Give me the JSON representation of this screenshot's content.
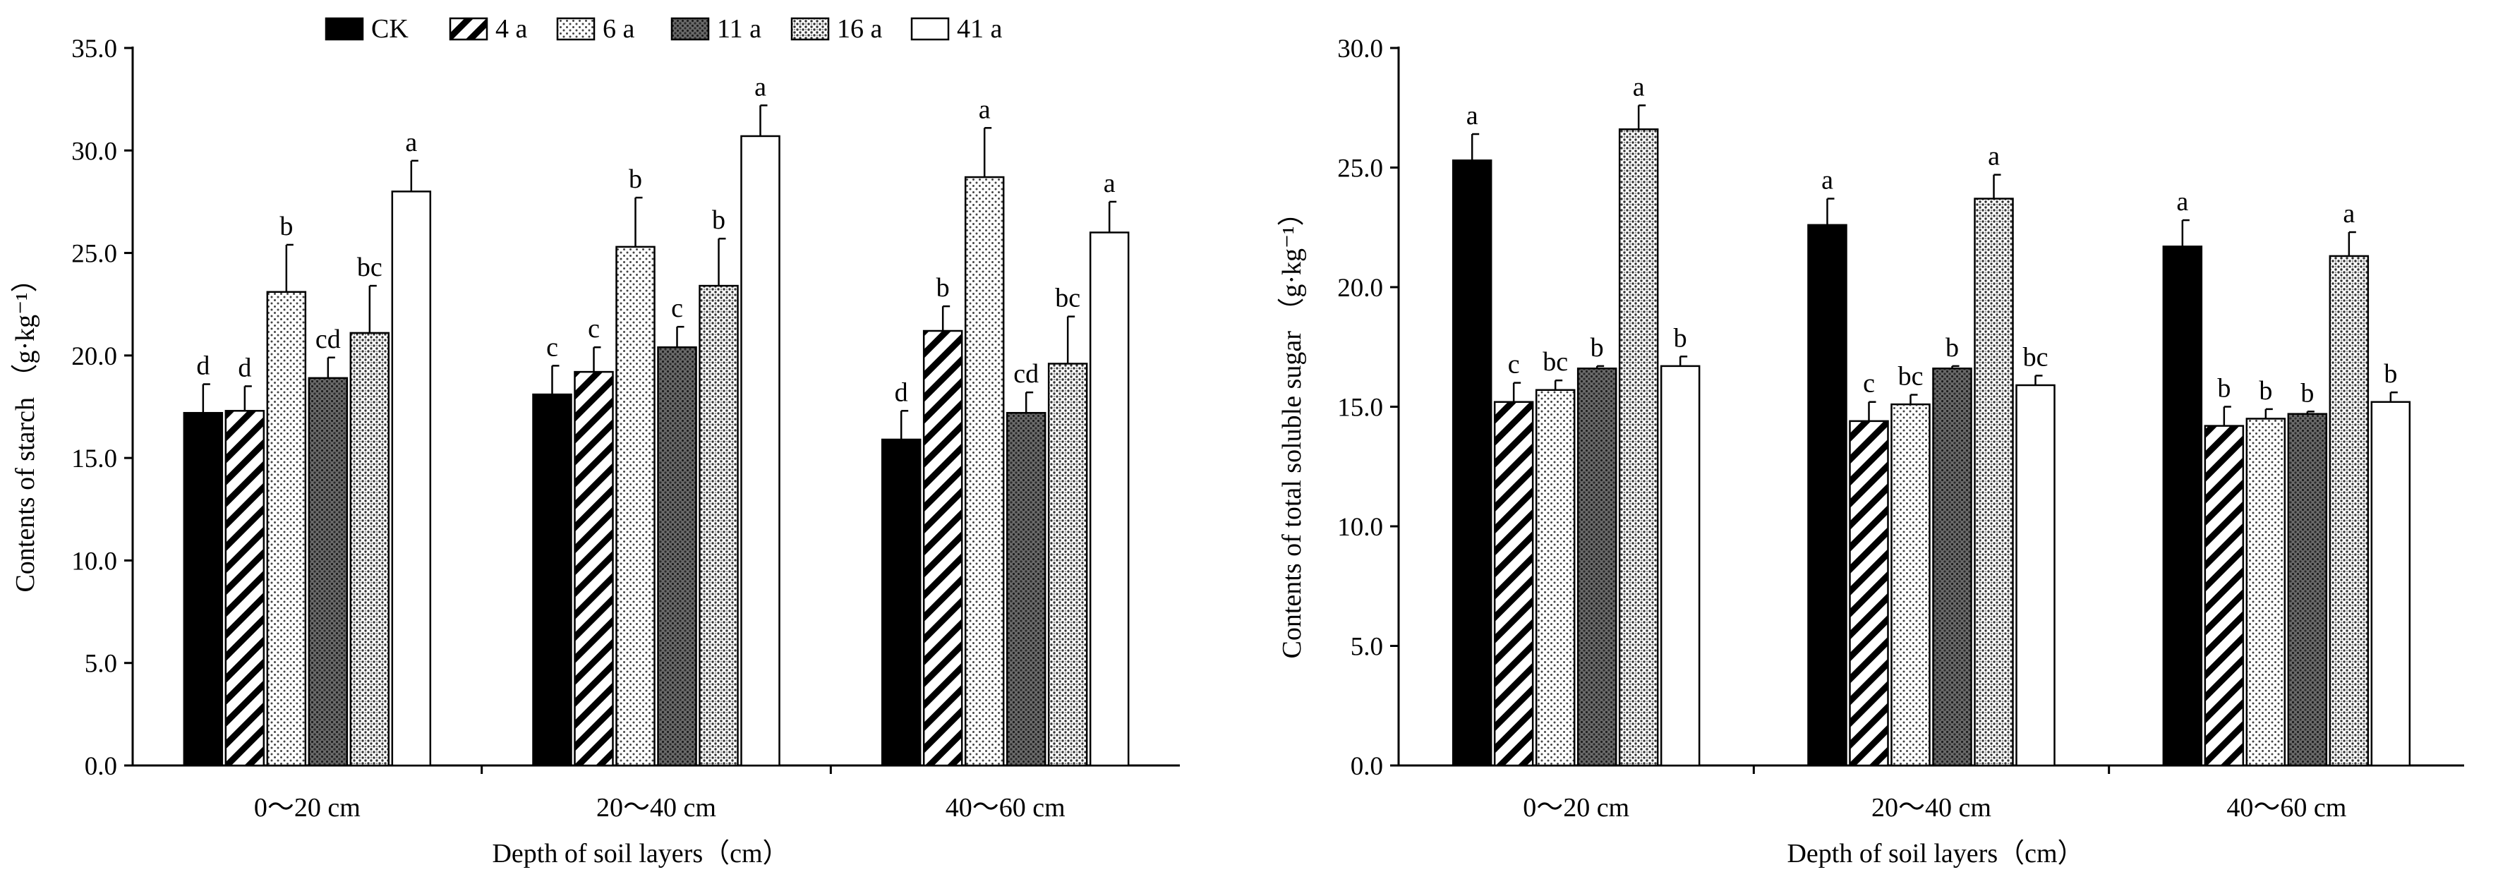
{
  "legend": {
    "items": [
      {
        "label": "CK",
        "pattern": "solid-black"
      },
      {
        "label": "4 a",
        "pattern": "diagonal-hatch"
      },
      {
        "label": "6 a",
        "pattern": "light-dots"
      },
      {
        "label": "11 a",
        "pattern": "dark-crosshatch"
      },
      {
        "label": "16 a",
        "pattern": "dense-dots"
      },
      {
        "label": "41 a",
        "pattern": "white"
      }
    ]
  },
  "chart_data": [
    {
      "type": "bar",
      "ylabel": "Contents of starch （g·kg⁻¹）",
      "xlabel": "Depth of soil layers（cm）",
      "ylim": [
        0,
        35
      ],
      "yticks": [
        "0.0",
        "5.0",
        "10.0",
        "15.0",
        "20.0",
        "25.0",
        "30.0",
        "35.0"
      ],
      "categories": [
        "0～20 cm",
        "20～40 cm",
        "40～60 cm"
      ],
      "series": [
        {
          "name": "CK",
          "values": [
            17.2,
            18.1,
            15.9
          ],
          "errors": [
            1.4,
            1.4,
            1.4
          ],
          "letters": [
            "d",
            "c",
            "d"
          ]
        },
        {
          "name": "4 a",
          "values": [
            17.3,
            19.2,
            21.2
          ],
          "errors": [
            1.2,
            1.2,
            1.2
          ],
          "letters": [
            "d",
            "c",
            "b"
          ]
        },
        {
          "name": "6 a",
          "values": [
            23.1,
            25.3,
            28.7
          ],
          "errors": [
            2.3,
            2.4,
            2.4
          ],
          "letters": [
            "b",
            "b",
            "a"
          ]
        },
        {
          "name": "11 a",
          "values": [
            18.9,
            20.4,
            17.2
          ],
          "errors": [
            1.0,
            1.0,
            1.0
          ],
          "letters": [
            "cd",
            "c",
            "cd"
          ]
        },
        {
          "name": "16 a",
          "values": [
            21.1,
            23.4,
            19.6
          ],
          "errors": [
            2.3,
            2.3,
            2.3
          ],
          "letters": [
            "bc",
            "b",
            "bc"
          ]
        },
        {
          "name": "41 a",
          "values": [
            28.0,
            30.7,
            26.0
          ],
          "errors": [
            1.5,
            1.5,
            1.5
          ],
          "letters": [
            "a",
            "a",
            "a"
          ]
        }
      ]
    },
    {
      "type": "bar",
      "ylabel": "Contents of total soluble sugar （g·kg⁻¹）",
      "xlabel": "Depth of soil layers（cm）",
      "ylim": [
        0,
        30
      ],
      "yticks": [
        "0.0",
        "5.0",
        "10.0",
        "15.0",
        "20.0",
        "25.0",
        "30.0"
      ],
      "categories": [
        "0～20 cm",
        "20～40 cm",
        "40～60 cm"
      ],
      "series": [
        {
          "name": "CK",
          "values": [
            25.3,
            22.6,
            21.7
          ],
          "errors": [
            1.1,
            1.1,
            1.1
          ],
          "letters": [
            "a",
            "a",
            "a"
          ]
        },
        {
          "name": "4 a",
          "values": [
            15.2,
            14.4,
            14.2
          ],
          "errors": [
            0.8,
            0.8,
            0.8
          ],
          "letters": [
            "c",
            "c",
            "b"
          ]
        },
        {
          "name": "6 a",
          "values": [
            15.7,
            15.1,
            14.5
          ],
          "errors": [
            0.4,
            0.4,
            0.4
          ],
          "letters": [
            "bc",
            "bc",
            "b"
          ]
        },
        {
          "name": "11 a",
          "values": [
            16.6,
            16.6,
            14.7
          ],
          "errors": [
            0.1,
            0.1,
            0.1
          ],
          "letters": [
            "b",
            "b",
            "b"
          ]
        },
        {
          "name": "16 a",
          "values": [
            26.6,
            23.7,
            21.3
          ],
          "errors": [
            1.0,
            1.0,
            1.0
          ],
          "letters": [
            "a",
            "a",
            "a"
          ]
        },
        {
          "name": "41 a",
          "values": [
            16.7,
            15.9,
            15.2
          ],
          "errors": [
            0.4,
            0.4,
            0.4
          ],
          "letters": [
            "b",
            "bc",
            "b"
          ]
        }
      ]
    }
  ]
}
